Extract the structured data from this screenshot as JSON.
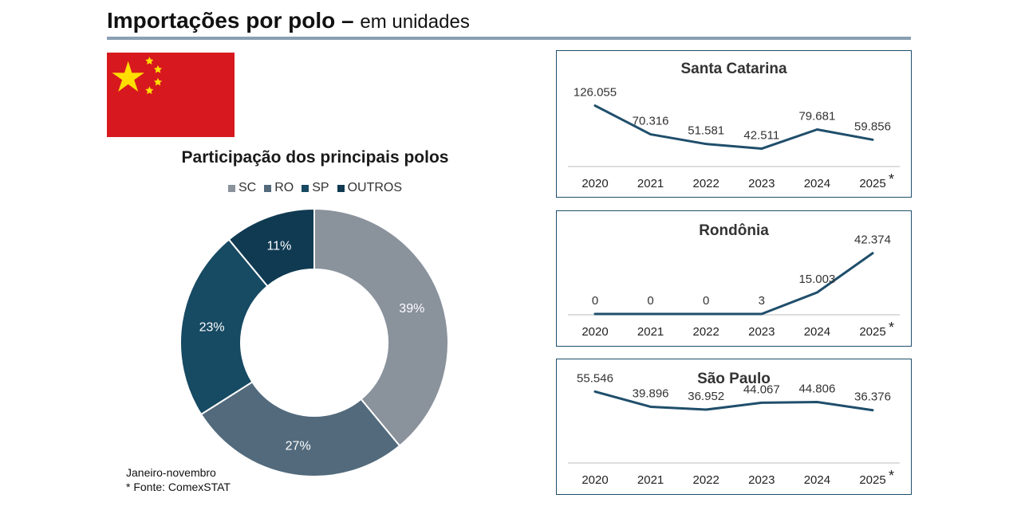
{
  "header": {
    "title_bold": "Importações por polo",
    "title_sep": " – ",
    "title_light": "em unidades"
  },
  "flag": {
    "name": "China flag"
  },
  "colors": {
    "sc": "#8a929c",
    "ro": "#526a7c",
    "sp": "#174a63",
    "outros": "#0f3a52",
    "line": "#1f4e6b",
    "rule": "#8a9fb2",
    "flag_red": "#d7191f",
    "flag_yellow": "#ffde00"
  },
  "footnote": {
    "line1": "Janeiro-novembro",
    "line2": "* Fonte: ComexSTAT"
  },
  "chart_data": [
    {
      "type": "pie",
      "subtype": "donut",
      "title": "Participação dos principais polos",
      "legend_position": "top",
      "categories": [
        "SC",
        "RO",
        "SP",
        "OUTROS"
      ],
      "values": [
        39,
        27,
        23,
        11
      ],
      "labels": [
        "39%",
        "27%",
        "23%",
        "11%"
      ]
    },
    {
      "type": "line",
      "title": "Santa Catarina",
      "x": [
        "2020",
        "2021",
        "2022",
        "2023",
        "2024",
        "2025"
      ],
      "asterisk_on_last": "*",
      "values": [
        126055,
        70316,
        51581,
        42511,
        79681,
        59856
      ],
      "labels": [
        "126.055",
        "70.316",
        "51.581",
        "42.511",
        "79.681",
        "59.856"
      ],
      "ylim": [
        0,
        130000
      ]
    },
    {
      "type": "line",
      "title": "Rondônia",
      "x": [
        "2020",
        "2021",
        "2022",
        "2023",
        "2024",
        "2025"
      ],
      "asterisk_on_last": "*",
      "values": [
        0,
        0,
        0,
        3,
        15003,
        42374
      ],
      "labels": [
        "0",
        "0",
        "0",
        "3",
        "15.003",
        "42.374"
      ],
      "ylim": [
        0,
        45000
      ]
    },
    {
      "type": "line",
      "title": "São Paulo",
      "x": [
        "2020",
        "2021",
        "2022",
        "2023",
        "2024",
        "2025"
      ],
      "asterisk_on_last": "*",
      "values": [
        55546,
        39896,
        36952,
        44067,
        44806,
        36376
      ],
      "labels": [
        "55.546",
        "39.896",
        "36.952",
        "44.067",
        "44.806",
        "36.376"
      ],
      "ylim": [
        0,
        60000
      ]
    }
  ]
}
